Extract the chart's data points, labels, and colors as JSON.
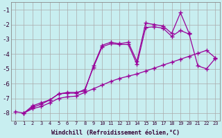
{
  "xlabel": "Windchill (Refroidissement éolien,°C)",
  "background_color": "#c8eef0",
  "grid_color": "#aaaaaa",
  "line_color": "#990099",
  "xlim": [
    -0.5,
    23.5
  ],
  "ylim": [
    -8.5,
    -0.5
  ],
  "yticks": [
    -8,
    -7,
    -6,
    -5,
    -4,
    -3,
    -2,
    -1
  ],
  "xticks": [
    0,
    1,
    2,
    3,
    4,
    5,
    6,
    7,
    8,
    9,
    10,
    11,
    12,
    13,
    14,
    15,
    16,
    17,
    18,
    19,
    20,
    21,
    22,
    23
  ],
  "series": [
    [
      null,
      -8.0,
      -7.5,
      -7.3,
      -7.1,
      -6.7,
      -6.6,
      -6.6,
      -6.5,
      -4.8,
      -3.4,
      -3.2,
      -3.3,
      -3.2,
      -4.5,
      -1.9,
      -2.0,
      -2.1,
      -2.6,
      -1.2,
      -2.6,
      null,
      null,
      null
    ],
    [
      null,
      -8.0,
      -7.6,
      -7.4,
      -7.1,
      -6.7,
      -6.65,
      -6.65,
      -6.4,
      -4.9,
      -3.5,
      -3.3,
      -3.35,
      -3.35,
      -4.7,
      -2.2,
      -2.15,
      -2.25,
      -2.8,
      -2.4,
      -2.65,
      -4.8,
      -5.0,
      -4.3
    ],
    [
      -7.9,
      -8.0,
      -7.7,
      -7.55,
      -7.3,
      -7.0,
      -6.9,
      -6.85,
      -6.6,
      -6.35,
      -6.1,
      -5.85,
      -5.65,
      -5.5,
      -5.35,
      -5.15,
      -4.95,
      -4.75,
      -4.55,
      -4.35,
      -4.15,
      -3.95,
      -3.75,
      -4.25
    ]
  ]
}
